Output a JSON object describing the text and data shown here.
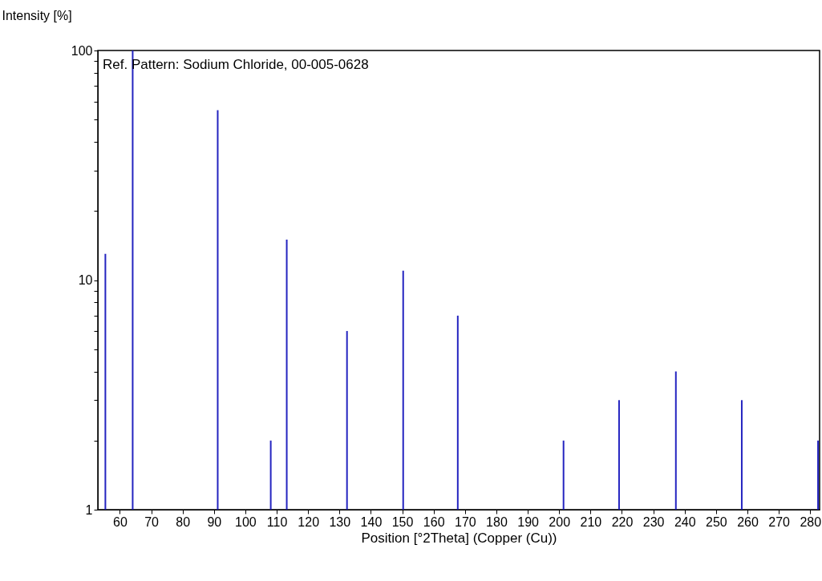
{
  "chart_data": {
    "type": "bar",
    "ylabel": "Intensity [%]",
    "xlabel": "Position [°2Theta] (Copper (Cu))",
    "annotations": [
      "Ref. Pattern: Sodium Chloride, 00-005-0628"
    ],
    "x": [
      55.4,
      64.1,
      91.2,
      108.1,
      113.2,
      132.4,
      150.3,
      167.7,
      201.4,
      219.1,
      237.2,
      258.2,
      282.5
    ],
    "values": [
      13,
      100,
      55,
      2,
      15,
      6,
      11,
      7,
      2,
      3,
      4,
      3,
      2
    ],
    "color": "#2424c0",
    "log": true,
    "xlim": [
      53,
      283
    ],
    "xticks": [
      60,
      70,
      80,
      90,
      100,
      110,
      120,
      130,
      140,
      150,
      160,
      170,
      180,
      190,
      200,
      210,
      220,
      230,
      240,
      250,
      260,
      270,
      280
    ],
    "ylim": [
      1,
      100
    ],
    "yticks": [
      1,
      {
        "value": 2,
        "label": null
      },
      {
        "value": 3,
        "label": null
      },
      {
        "value": 4,
        "label": null
      },
      {
        "value": 5,
        "label": null
      },
      {
        "value": 6,
        "label": null
      },
      {
        "value": 7,
        "label": null
      },
      {
        "value": 8,
        "label": null
      },
      {
        "value": 9,
        "label": null
      },
      10,
      {
        "value": 20,
        "label": null
      },
      {
        "value": 30,
        "label": null
      },
      {
        "value": 40,
        "label": null
      },
      {
        "value": 50,
        "label": null
      },
      {
        "value": 60,
        "label": null
      },
      {
        "value": 70,
        "label": null
      },
      {
        "value": 80,
        "label": null
      },
      {
        "value": 90,
        "label": null
      },
      100
    ]
  }
}
